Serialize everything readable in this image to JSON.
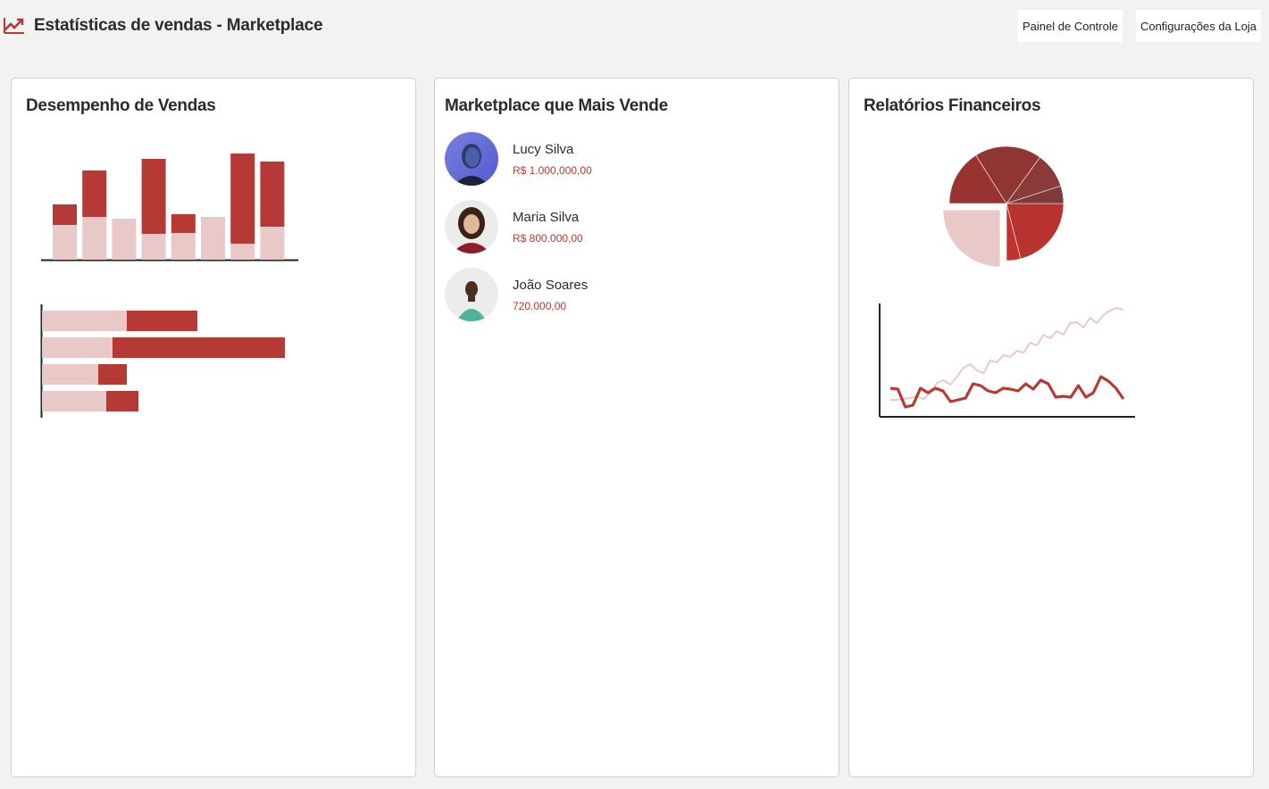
{
  "header": {
    "title": "Estatísticas de vendas - Marketplace",
    "icon": "trending-up-icon",
    "buttons": {
      "panel": "Painel de Controle",
      "config": "Configurações da Loja"
    }
  },
  "colors": {
    "accent": "#b53a36",
    "accent_light": "#e8c9c8",
    "background": "#f2f2f2"
  },
  "cards": {
    "performance": {
      "title": "Desempenho de Vendas"
    },
    "top_marketplace": {
      "title": "Marketplace que Mais Vende"
    },
    "financial": {
      "title": "Relatórios Financeiros"
    }
  },
  "sellers": [
    {
      "name": "Lucy Silva",
      "value": "R$ 1.000,000,00",
      "avatar": "avatar-lucy"
    },
    {
      "name": "Maria Silva",
      "value": "R$ 800.000,00",
      "avatar": "avatar-maria"
    },
    {
      "name": "João Soares",
      "value": "720.000,00",
      "avatar": "avatar-joao"
    }
  ],
  "chart_data": [
    {
      "type": "bar",
      "stacked": true,
      "orientation": "vertical",
      "categories": [
        "",
        "",
        "",
        "",
        "",
        "",
        "",
        ""
      ],
      "series": [
        {
          "values": [
            39,
            48,
            46,
            29,
            30,
            48,
            18,
            37
          ],
          "color": "#e8c9c8"
        },
        {
          "values": [
            23,
            52,
            0,
            84,
            21,
            0,
            101,
            73
          ],
          "color": "#b53a36"
        }
      ]
    },
    {
      "type": "bar",
      "stacked": true,
      "orientation": "horizontal",
      "categories": [
        "",
        "",
        "",
        ""
      ],
      "series": [
        {
          "values": [
            95,
            79,
            63,
            72
          ],
          "color": "#e8c9c8"
        },
        {
          "values": [
            79,
            193,
            32,
            36
          ],
          "color": "#b53a36"
        }
      ]
    },
    {
      "type": "pie",
      "slices": [
        {
          "value": 21,
          "color": "#b8322f"
        },
        {
          "value": 4,
          "color": "#c0332e"
        },
        {
          "value": 25,
          "color": "#e8c9c8",
          "exploded": true
        },
        {
          "value": 16,
          "color": "#993331"
        },
        {
          "value": 19,
          "color": "#8f3633"
        },
        {
          "value": 10,
          "color": "#8a3a38"
        },
        {
          "value": 5,
          "color": "#7d3b39"
        }
      ]
    },
    {
      "type": "line",
      "series": [
        {
          "values": [
            12,
            12,
            13,
            14,
            16,
            13,
            20,
            31,
            34,
            29,
            38,
            48,
            52,
            45,
            42,
            56,
            54,
            62,
            60,
            67,
            65,
            76,
            73,
            85,
            81,
            89,
            85,
            98,
            99,
            93,
            104,
            98,
            107,
            112,
            115,
            113
          ],
          "color": "#e8c9c8"
        },
        {
          "values": [
            25,
            24,
            4,
            6,
            25,
            20,
            25,
            22,
            10,
            12,
            14,
            30,
            28,
            22,
            20,
            25,
            24,
            22,
            30,
            24,
            34,
            30,
            15,
            16,
            15,
            28,
            15,
            20,
            38,
            33,
            25,
            13
          ],
          "color": "#b53a36"
        }
      ]
    }
  ]
}
